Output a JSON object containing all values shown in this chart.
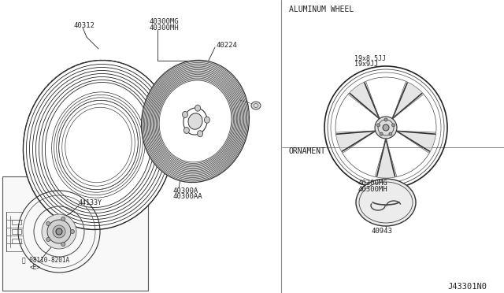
{
  "bg_color": "#ffffff",
  "line_color": "#222222",
  "diagram_id": "J43301N0",
  "parts": {
    "tire_label": "40312",
    "wheel_rim_label1": "40300MG",
    "wheel_rim_label2": "40300MH",
    "wheel_center_label": "40224",
    "lug_nut_label1": "40300A",
    "lug_nut_label2": "40300AA",
    "brake_label": "44133Y",
    "bolt_label": "08110-8201A",
    "bolt_label2": "<E>",
    "alum_wheel_label1": "40300MG",
    "alum_wheel_label2": "40300MH",
    "alum_wheel_size1": "19x8.5JJ",
    "alum_wheel_size2": "19x9JJ",
    "ornament_label": "40943",
    "section_alum": "ALUMINUM WHEEL",
    "section_orn": "ORNAMENT"
  }
}
